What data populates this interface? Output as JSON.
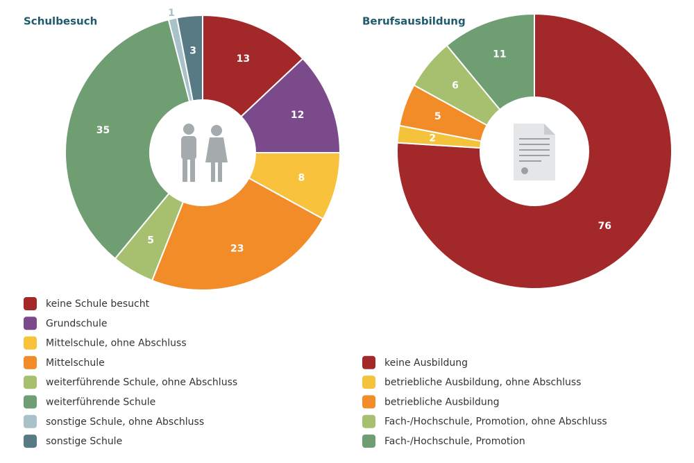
{
  "chart_data": [
    {
      "type": "pie",
      "title": "Schulbesuch",
      "categories": [
        "keine Schule besucht",
        "Grundschule",
        "Mittelschule, ohne Abschluss",
        "Mittelschule",
        "weiterführende Schule, ohne Abschluss",
        "weiterführende Schule",
        "sonstige Schule, ohne Abschluss",
        "sonstige Schule"
      ],
      "values": [
        13,
        12,
        8,
        23,
        5,
        35,
        1,
        3
      ],
      "colors": [
        "#a3282a",
        "#7b4a8b",
        "#f9c23c",
        "#f28c28",
        "#a6c070",
        "#6e9e72",
        "#a9c1c9",
        "#577a85"
      ]
    },
    {
      "type": "pie",
      "title": "Berufsausbildung",
      "categories": [
        "keine Ausbildung",
        "betriebliche Ausbildung, ohne Abschluss",
        "betriebliche Ausbildung",
        "Fach-/Hochschule, Promotion, ohne Abschluss",
        "Fach-/Hochschule, Promotion"
      ],
      "values": [
        76,
        2,
        5,
        6,
        11
      ],
      "colors": [
        "#a3282a",
        "#f5c33b",
        "#f28c28",
        "#a6c070",
        "#6e9e72"
      ]
    }
  ]
}
